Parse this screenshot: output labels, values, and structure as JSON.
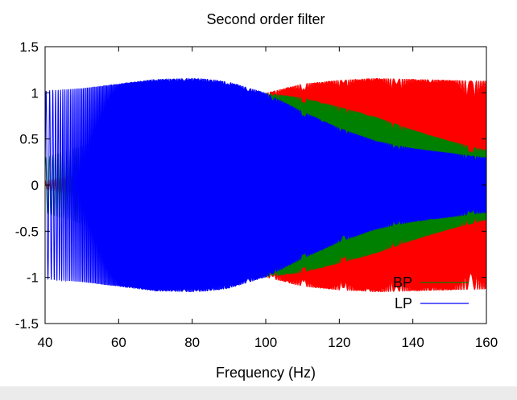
{
  "chart_data": {
    "type": "line",
    "title": "Second order filter",
    "xlabel": "Frequency (Hz)",
    "ylabel": "",
    "xlim": [
      40,
      160
    ],
    "ylim": [
      -1.5,
      1.5
    ],
    "xticks": [
      "40",
      "60",
      "80",
      "100",
      "120",
      "140",
      "160"
    ],
    "yticks": [
      "1.5",
      "1",
      "0.5",
      "0",
      "-0.5",
      "-1",
      "-1.5"
    ],
    "grid": false,
    "legend_position": "bottom-right",
    "series": [
      {
        "name": "",
        "color": "#ff0000",
        "description": "high-pass response to a frequency sweep",
        "envelope_x": [
          40,
          60,
          80,
          90,
          100,
          110,
          120,
          130,
          140,
          150,
          160
        ],
        "envelope_y": [
          0.05,
          0.2,
          0.5,
          0.75,
          1.0,
          1.1,
          1.14,
          1.16,
          1.15,
          1.14,
          1.13
        ]
      },
      {
        "name": "BP",
        "color": "#008000",
        "description": "band-pass response to a frequency sweep",
        "envelope_x": [
          40,
          50,
          60,
          70,
          80,
          90,
          100,
          110,
          120,
          130,
          140,
          150,
          160
        ],
        "envelope_y": [
          0.3,
          0.42,
          0.58,
          0.75,
          0.9,
          0.98,
          1.0,
          0.95,
          0.85,
          0.74,
          0.6,
          0.48,
          0.38
        ]
      },
      {
        "name": "LP",
        "color": "#0000ff",
        "description": "low-pass response to a frequency sweep",
        "envelope_x": [
          40,
          50,
          60,
          70,
          80,
          85,
          90,
          100,
          110,
          120,
          130,
          140,
          150,
          160
        ],
        "envelope_y": [
          1.02,
          1.05,
          1.1,
          1.15,
          1.16,
          1.15,
          1.12,
          1.0,
          0.8,
          0.62,
          0.48,
          0.4,
          0.35,
          0.3
        ]
      }
    ]
  }
}
